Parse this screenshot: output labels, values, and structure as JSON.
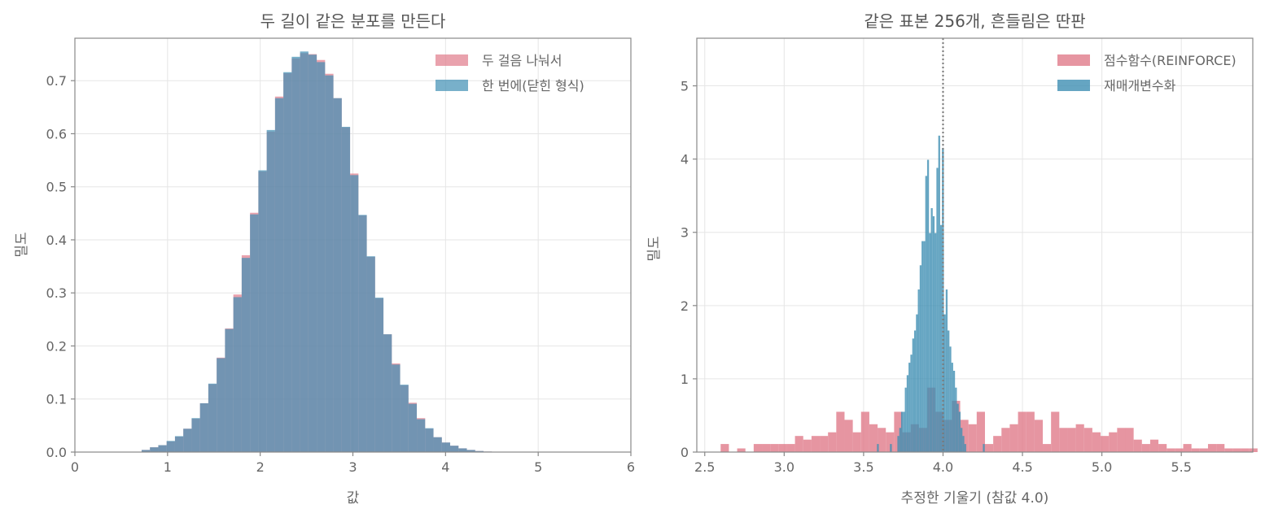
{
  "colors": {
    "red": "#e07b8a",
    "blue": "#3f8fb3",
    "reference_line": "#777777"
  },
  "chart_data": [
    {
      "type": "histogram",
      "title": "두 길이 같은 분포를 만든다",
      "xlabel": "값",
      "ylabel": "밀도",
      "xlim": [
        0,
        6
      ],
      "ylim": [
        0,
        0.78
      ],
      "xticks": [
        "0",
        "1",
        "2",
        "3",
        "4",
        "5",
        "6"
      ],
      "yticks": [
        "0.0",
        "0.1",
        "0.2",
        "0.3",
        "0.4",
        "0.5",
        "0.6",
        "0.7"
      ],
      "grid": true,
      "legend_position": "top-right",
      "bin_edges_start": 0.72,
      "bin_width": 0.09,
      "series": [
        {
          "name": "두 걸음 나눠서",
          "color": "red",
          "values": [
            0.004,
            0.009,
            0.013,
            0.02,
            0.029,
            0.044,
            0.063,
            0.092,
            0.128,
            0.178,
            0.233,
            0.297,
            0.371,
            0.451,
            0.529,
            0.604,
            0.67,
            0.714,
            0.742,
            0.752,
            0.75,
            0.739,
            0.713,
            0.667,
            0.612,
            0.525,
            0.446,
            0.368,
            0.29,
            0.222,
            0.167,
            0.126,
            0.093,
            0.064,
            0.044,
            0.028,
            0.018,
            0.012,
            0.007,
            0.004,
            0.002,
            0.001
          ]
        },
        {
          "name": "한 번에(닫힌 형식)",
          "color": "blue",
          "values": [
            0.004,
            0.009,
            0.013,
            0.021,
            0.03,
            0.044,
            0.064,
            0.092,
            0.129,
            0.177,
            0.232,
            0.292,
            0.366,
            0.448,
            0.531,
            0.607,
            0.667,
            0.716,
            0.745,
            0.755,
            0.749,
            0.735,
            0.71,
            0.667,
            0.613,
            0.522,
            0.447,
            0.369,
            0.291,
            0.222,
            0.165,
            0.127,
            0.091,
            0.062,
            0.045,
            0.028,
            0.018,
            0.012,
            0.007,
            0.004,
            0.002,
            0.001
          ]
        }
      ]
    },
    {
      "type": "histogram",
      "title": "같은 표본 256개, 흔들림은 딴판",
      "xlabel": "추정한 기울기 (참값 4.0)",
      "ylabel": "밀도",
      "xlim": [
        2.45,
        5.95
      ],
      "ylim": [
        0,
        5.65
      ],
      "xticks": [
        "2.5",
        "3.0",
        "3.5",
        "4.0",
        "4.5",
        "5.0",
        "5.5"
      ],
      "yticks": [
        "0",
        "1",
        "2",
        "3",
        "4",
        "5"
      ],
      "grid": true,
      "legend_position": "top-right",
      "reference_x": 4.0,
      "series": [
        {
          "name": "점수함수(REINFORCE)",
          "color": "red",
          "bin_edges_start": 2.6,
          "bin_width": 0.052,
          "values": [
            0.11,
            0,
            0.05,
            0,
            0.11,
            0.11,
            0.11,
            0.11,
            0.11,
            0.22,
            0.17,
            0.22,
            0.22,
            0.27,
            0.55,
            0.44,
            0.27,
            0.55,
            0.38,
            0.33,
            0.27,
            0.55,
            0.27,
            0.38,
            0.33,
            0.88,
            0.55,
            0.44,
            0.7,
            0.44,
            0.38,
            0.55,
            0.11,
            0.22,
            0.33,
            0.38,
            0.55,
            0.55,
            0.44,
            0.11,
            0.55,
            0.33,
            0.33,
            0.38,
            0.33,
            0.27,
            0.22,
            0.27,
            0.33,
            0.33,
            0.17,
            0.11,
            0.17,
            0.11,
            0.05,
            0.05,
            0.11,
            0.05,
            0.05,
            0.11,
            0.11,
            0.05,
            0.05,
            0.05,
            0.05
          ]
        },
        {
          "name": "재매개변수화",
          "color": "blue",
          "bin_edges_start": 3.584,
          "bin_width": 0.0117,
          "values": [
            0.11,
            0,
            0,
            0,
            0,
            0,
            0,
            0.11,
            0,
            0,
            0,
            0.22,
            0.33,
            0.55,
            0.55,
            0.88,
            1.05,
            1.22,
            1.33,
            1.55,
            1.66,
            1.88,
            2.22,
            2.55,
            2.88,
            2.88,
            3.77,
            3.99,
            2.99,
            3.33,
            3.22,
            2.99,
            3.88,
            4.32,
            3.1,
            4.15,
            1.88,
            2.22,
            1.66,
            1.44,
            1.22,
            1.11,
            0.88,
            0.66,
            0.55,
            0.33,
            0.22,
            0.11,
            0,
            0,
            0,
            0,
            0,
            0,
            0,
            0,
            0,
            0.11
          ]
        }
      ]
    }
  ]
}
